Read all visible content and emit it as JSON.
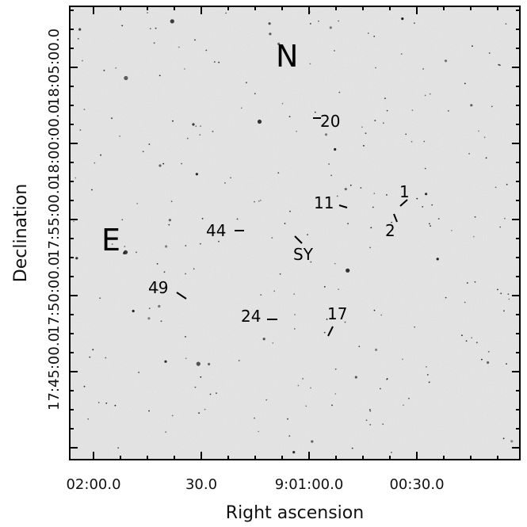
{
  "chart_data": {
    "type": "image",
    "xlabel": "Right ascension",
    "ylabel": "Declination",
    "x_ticks": [
      {
        "label": "02:00.0"
      },
      {
        "label": "30.0"
      },
      {
        "label": "9:01:00.0"
      },
      {
        "label": "00:30.0"
      }
    ],
    "y_ticks": [
      {
        "label": "18:05:00.0"
      },
      {
        "label": "18:00:00.0"
      },
      {
        "label": "17:55:00.0"
      },
      {
        "label": "17:50:00.0"
      },
      {
        "label": "17:45:00.0"
      }
    ],
    "compass": {
      "north": "N",
      "east": "E"
    },
    "star_labels": [
      "20",
      "1",
      "11",
      "2",
      "44",
      "SY",
      "49",
      "24",
      "17"
    ],
    "colors": {
      "sky": "#e6e6e6",
      "frame": "#000000",
      "star": "#1a1a1a"
    }
  }
}
